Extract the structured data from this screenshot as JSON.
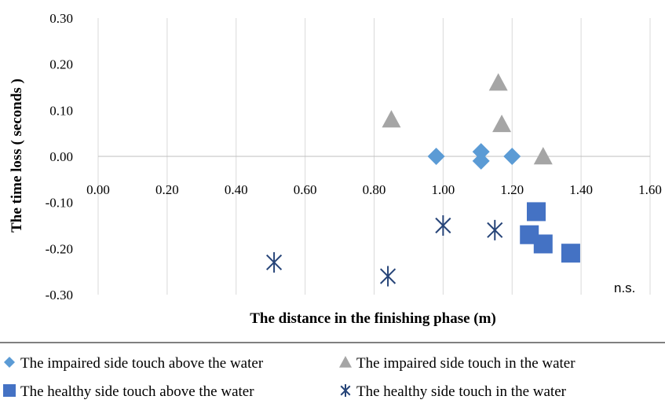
{
  "chart_data": {
    "type": "scatter",
    "xlabel": "The distance in the finishing phase (m)",
    "ylabel": "The time loss ( seconds )",
    "xlim": [
      0,
      1.6
    ],
    "ylim": [
      -0.3,
      0.3
    ],
    "x_ticks": [
      "0.00",
      "0.20",
      "0.40",
      "0.60",
      "0.80",
      "1.00",
      "1.20",
      "1.40",
      "1.60"
    ],
    "y_ticks": [
      "0.30",
      "0.20",
      "0.10",
      "0.00",
      "-0.10",
      "-0.20",
      "-0.30"
    ],
    "grid": "vertical",
    "annotation": "n.s.",
    "legend_position": "bottom",
    "series": [
      {
        "name": "The impaired side touch above the water",
        "marker": "diamond",
        "color": "#5b9bd5",
        "points": [
          [
            0.98,
            0.0
          ],
          [
            1.11,
            0.01
          ],
          [
            1.11,
            -0.01
          ],
          [
            1.2,
            0.0
          ]
        ]
      },
      {
        "name": "The impaired side touch in the water",
        "marker": "triangle",
        "color": "#a5a5a5",
        "points": [
          [
            0.85,
            0.08
          ],
          [
            1.16,
            0.16
          ],
          [
            1.17,
            0.07
          ],
          [
            1.29,
            0.0
          ]
        ]
      },
      {
        "name": "The healthy side touch above the water",
        "marker": "square",
        "color": "#4472c4",
        "points": [
          [
            1.27,
            -0.12
          ],
          [
            1.25,
            -0.17
          ],
          [
            1.29,
            -0.19
          ],
          [
            1.37,
            -0.21
          ]
        ]
      },
      {
        "name": "The healthy side touch in the water",
        "marker": "asterisk",
        "color": "#264478",
        "points": [
          [
            0.51,
            -0.23
          ],
          [
            0.84,
            -0.26
          ],
          [
            1.0,
            -0.15
          ],
          [
            1.15,
            -0.16
          ]
        ]
      }
    ]
  }
}
